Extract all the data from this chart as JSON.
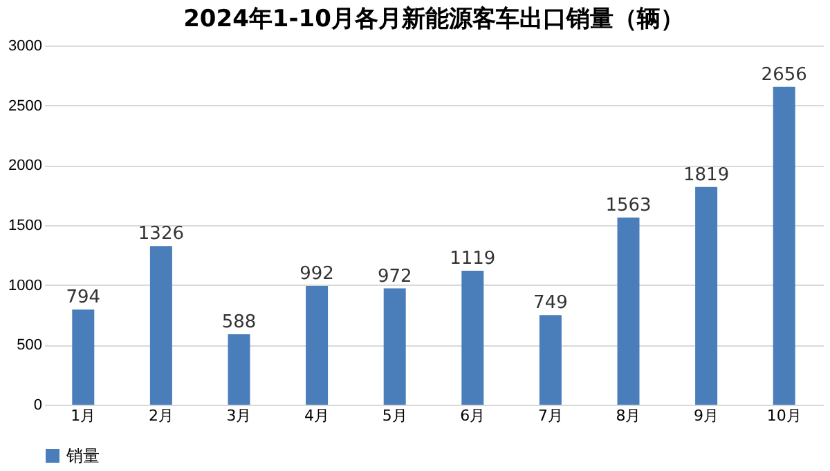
{
  "chart_data": {
    "type": "bar",
    "title": "2024年1-10月各月新能源客车出口销量（辆）",
    "categories": [
      "1月",
      "2月",
      "3月",
      "4月",
      "5月",
      "6月",
      "7月",
      "8月",
      "9月",
      "10月"
    ],
    "series": [
      {
        "name": "销量",
        "color": "#4a7ebb",
        "values": [
          794,
          1326,
          588,
          992,
          972,
          1119,
          749,
          1563,
          1819,
          2656
        ]
      }
    ],
    "ylim": [
      0,
      3000
    ],
    "yticks": [
      0,
      500,
      1000,
      1500,
      2000,
      2500,
      3000
    ],
    "grid": "y",
    "legend": "bottom",
    "data_labels": true
  }
}
